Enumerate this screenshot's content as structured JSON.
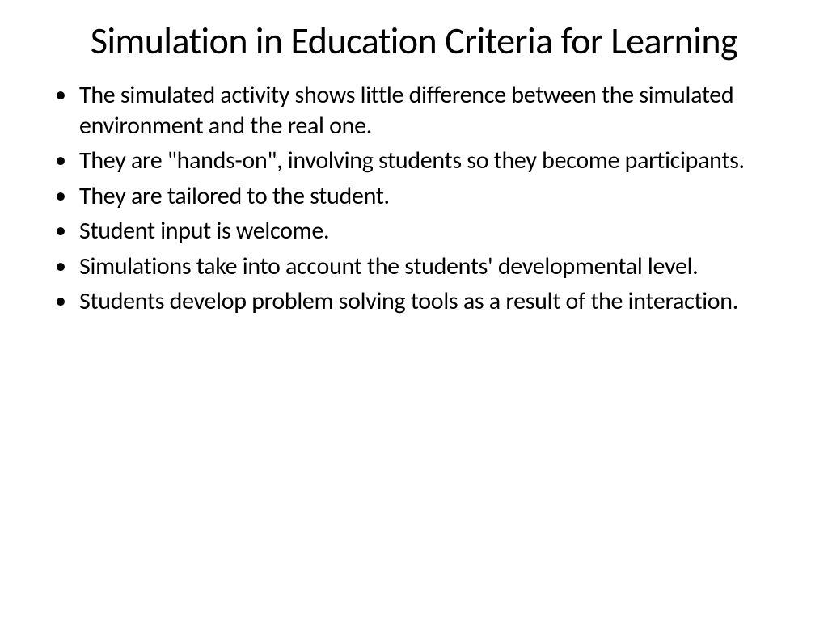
{
  "slide": {
    "title": "Simulation in Education Criteria for Learning",
    "title_fontsize": 46,
    "title_color": "#000000",
    "bullets": [
      "The simulated activity shows little difference between the simulated environment and the real one.",
      "They are \"hands-on\", involving students so they become participants.",
      "They are tailored to the student.",
      "Student input is welcome.",
      "Simulations take into account the students' developmental level.",
      "Students develop problem solving tools as a result of the interaction."
    ],
    "bullet_fontsize": 30,
    "bullet_color": "#000000",
    "background_color": "#ffffff"
  }
}
